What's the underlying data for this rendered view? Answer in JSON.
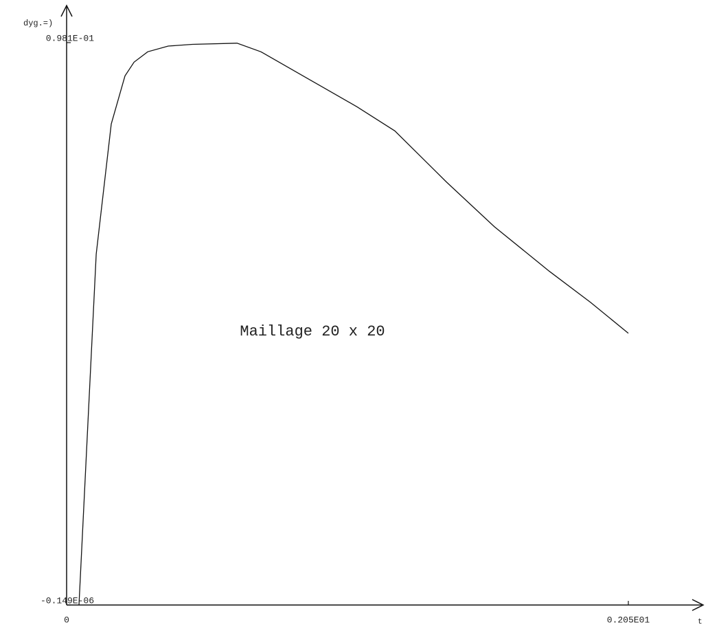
{
  "chart_data": {
    "type": "line",
    "xlabel": "t",
    "ylabel": "dyg.=)",
    "annotation": "Maillage 20 x 20",
    "x": [
      0.045,
      0.108,
      0.163,
      0.213,
      0.246,
      0.296,
      0.371,
      0.459,
      0.622,
      0.709,
      0.885,
      1.06,
      1.198,
      1.386,
      1.561,
      1.762,
      1.912,
      2.05
    ],
    "series": [
      {
        "color": "#111111",
        "values": [
          0,
          0.0612,
          0.0839,
          0.0923,
          0.0947,
          0.0965,
          0.0975,
          0.0978,
          0.098,
          0.0965,
          0.0917,
          0.0869,
          0.0827,
          0.0738,
          0.066,
          0.0582,
          0.0528,
          0.0474
        ]
      }
    ],
    "xlim": [
      0,
      2.05
    ],
    "ylim": [
      -1.49e-07,
      0.0981
    ],
    "xticks": [
      0,
      {
        "value": 2.05,
        "label": "0.205E01"
      }
    ],
    "yticks": [
      {
        "value": -1.49e-07,
        "label": "-0.149E-06"
      },
      {
        "value": 0.0981,
        "label": "0.981E-01"
      }
    ]
  }
}
